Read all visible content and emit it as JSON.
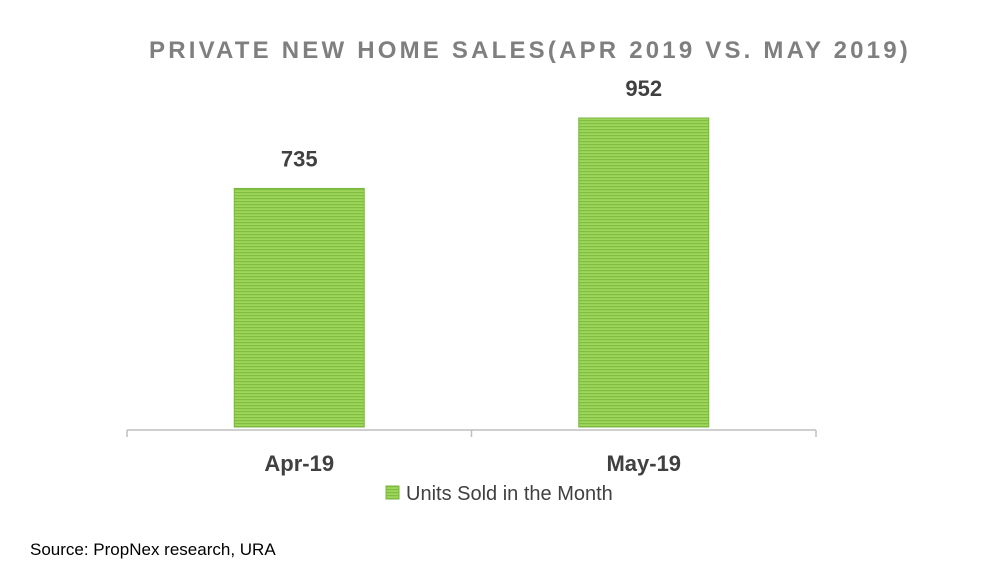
{
  "chart_data": {
    "type": "bar",
    "title": "PRIVATE NEW HOME SALES(APR 2019 VS. MAY 2019)",
    "categories": [
      "Apr-19",
      "May-19"
    ],
    "series": [
      {
        "name": "Units Sold in the Month",
        "values": [
          735,
          952
        ],
        "color": "#8cc63e"
      }
    ],
    "data_labels": [
      "735",
      "952"
    ],
    "ylim": [
      0,
      1100
    ],
    "grid": false,
    "legend_position": "bottom"
  },
  "source": "Source: PropNex research, URA",
  "colors": {
    "bar_fill": "#92d050",
    "bar_stripe": "#7fbf3f",
    "bar_border": "#78b542",
    "title": "#7f7f7f",
    "label": "#404040",
    "axis": "#bfbfbf"
  }
}
